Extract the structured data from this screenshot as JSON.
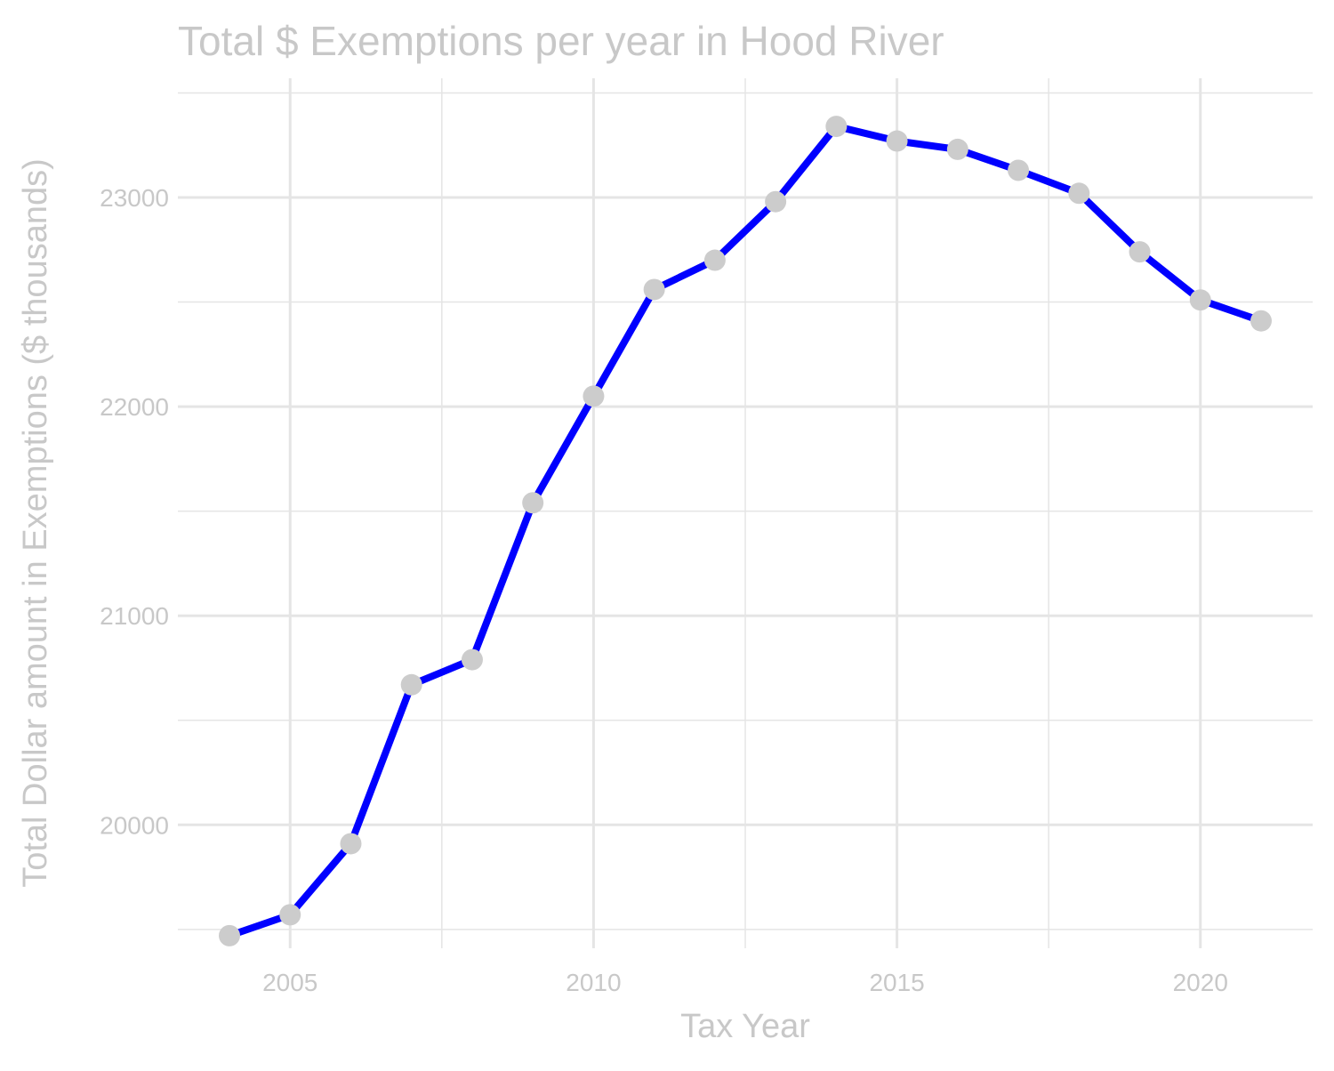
{
  "chart_data": {
    "type": "line",
    "title": "Total $ Exemptions per year in Hood River",
    "xlabel": "Tax Year",
    "ylabel": "Total Dollar amount in Exemptions ($ thousands)",
    "x_ticks": [
      2005,
      2010,
      2015,
      2020
    ],
    "y_ticks": [
      20000,
      21000,
      22000,
      23000
    ],
    "xlim": [
      2003.15,
      2021.85
    ],
    "ylim": [
      19410,
      23570
    ],
    "grid": true,
    "legend": "none",
    "colors": {
      "line": "#0000ff",
      "points": "#cccccc",
      "grid": "#e5e5e5",
      "text": "#c8c8c8"
    },
    "series": [
      {
        "x": [
          2004,
          2005,
          2006,
          2007,
          2008,
          2009,
          2010,
          2011,
          2012,
          2013,
          2014,
          2015,
          2016,
          2017,
          2018,
          2019,
          2020,
          2021
        ],
        "values": [
          19470,
          19570,
          19910,
          20670,
          20790,
          21540,
          22050,
          22560,
          22700,
          22980,
          23340,
          23270,
          23230,
          23130,
          23020,
          22740,
          22510,
          22410
        ]
      }
    ]
  }
}
